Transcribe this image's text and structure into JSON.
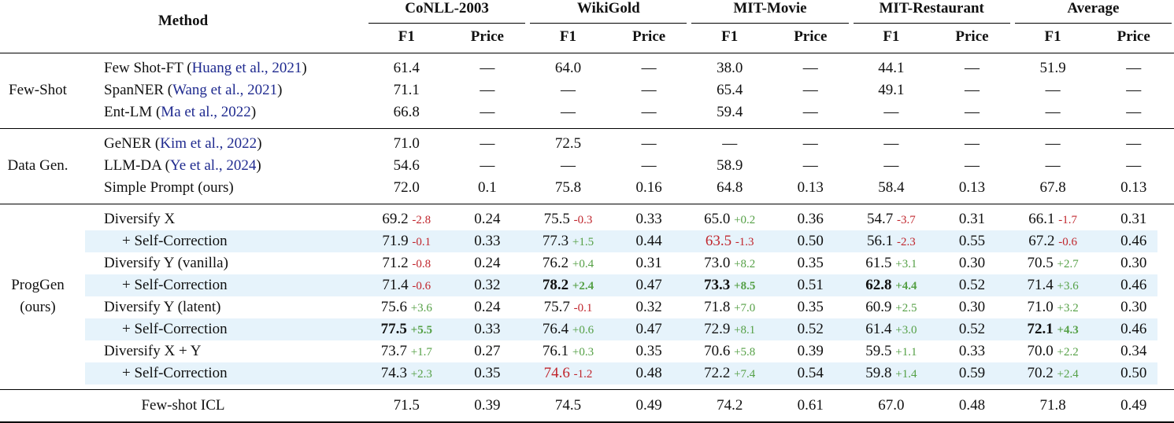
{
  "header": {
    "method": "Method",
    "datasets": [
      "CoNLL-2003",
      "WikiGold",
      "MIT-Movie",
      "MIT-Restaurant",
      "Average"
    ],
    "metrics": [
      "F1",
      "Price"
    ]
  },
  "colors": {
    "positive": "#55a046",
    "negative": "#c0262d",
    "cite": "#1f2a8f",
    "shade": "#e6f3fb"
  },
  "groups": [
    {
      "label": "Few-Shot",
      "rows": [
        {
          "method": {
            "name": "Few Shot-FT (",
            "cite": "Huang et al., 2021",
            "close": ")"
          },
          "cells": [
            {
              "f1": "61.4",
              "p": "—"
            },
            {
              "f1": "64.0",
              "p": "—"
            },
            {
              "f1": "38.0",
              "p": "—"
            },
            {
              "f1": "44.1",
              "p": "—"
            },
            {
              "f1": "51.9",
              "p": "—"
            }
          ]
        },
        {
          "method": {
            "name": "SpanNER (",
            "cite": "Wang et al., 2021",
            "close": ")"
          },
          "cells": [
            {
              "f1": "71.1",
              "p": "—"
            },
            {
              "f1": "—",
              "p": "—"
            },
            {
              "f1": "65.4",
              "p": "—"
            },
            {
              "f1": "49.1",
              "p": "—"
            },
            {
              "f1": "—",
              "p": "—"
            }
          ]
        },
        {
          "method": {
            "name": "Ent-LM (",
            "cite": "Ma et al., 2022",
            "close": ")"
          },
          "cells": [
            {
              "f1": "66.8",
              "p": "—"
            },
            {
              "f1": "—",
              "p": "—"
            },
            {
              "f1": "59.4",
              "p": "—"
            },
            {
              "f1": "—",
              "p": "—"
            },
            {
              "f1": "—",
              "p": "—"
            }
          ]
        }
      ]
    },
    {
      "label": "Data Gen.",
      "rows": [
        {
          "method": {
            "name": "GeNER (",
            "cite": "Kim et al., 2022",
            "close": ")"
          },
          "cells": [
            {
              "f1": "71.0",
              "p": "—"
            },
            {
              "f1": "72.5",
              "p": "—"
            },
            {
              "f1": "—",
              "p": "—"
            },
            {
              "f1": "—",
              "p": "—"
            },
            {
              "f1": "—",
              "p": "—"
            }
          ]
        },
        {
          "method": {
            "name": "LLM-DA (",
            "cite": "Ye et al., 2024",
            "close": ")"
          },
          "cells": [
            {
              "f1": "54.6",
              "p": "—"
            },
            {
              "f1": "—",
              "p": "—"
            },
            {
              "f1": "58.9",
              "p": "—"
            },
            {
              "f1": "—",
              "p": "—"
            },
            {
              "f1": "—",
              "p": "—"
            }
          ]
        },
        {
          "method": {
            "name": "Simple Prompt (ours)"
          },
          "cells": [
            {
              "f1": "72.0",
              "p": "0.1"
            },
            {
              "f1": "75.8",
              "p": "0.16"
            },
            {
              "f1": "64.8",
              "p": "0.13"
            },
            {
              "f1": "58.4",
              "p": "0.13"
            },
            {
              "f1": "67.8",
              "p": "0.13"
            }
          ]
        }
      ]
    },
    {
      "label": "ProgGen (ours)",
      "rows": [
        {
          "method": {
            "name": "Diversify X"
          },
          "cells": [
            {
              "f1": "69.2",
              "d": "-2.8",
              "p": "0.24"
            },
            {
              "f1": "75.5",
              "d": "-0.3",
              "p": "0.33"
            },
            {
              "f1": "65.0",
              "d": "+0.2",
              "p": "0.36"
            },
            {
              "f1": "54.7",
              "d": "-3.7",
              "p": "0.31"
            },
            {
              "f1": "66.1",
              "d": "-1.7",
              "p": "0.31"
            }
          ]
        },
        {
          "shaded": true,
          "method": {
            "name": "+ Self-Correction"
          },
          "cells": [
            {
              "f1": "71.9",
              "d": "-0.1",
              "p": "0.33"
            },
            {
              "f1": "77.3",
              "d": "+1.5",
              "p": "0.44"
            },
            {
              "f1": "63.5",
              "d": "-1.3",
              "p": "0.50",
              "red": true
            },
            {
              "f1": "56.1",
              "d": "-2.3",
              "p": "0.55"
            },
            {
              "f1": "67.2",
              "d": "-0.6",
              "p": "0.46"
            }
          ]
        },
        {
          "method": {
            "name": "Diversify Y (vanilla)"
          },
          "cells": [
            {
              "f1": "71.2",
              "d": "-0.8",
              "p": "0.24"
            },
            {
              "f1": "76.2",
              "d": "+0.4",
              "p": "0.31"
            },
            {
              "f1": "73.0",
              "d": "+8.2",
              "p": "0.35"
            },
            {
              "f1": "61.5",
              "d": "+3.1",
              "p": "0.30"
            },
            {
              "f1": "70.5",
              "d": "+2.7",
              "p": "0.30"
            }
          ]
        },
        {
          "shaded": true,
          "method": {
            "name": "+ Self-Correction"
          },
          "cells": [
            {
              "f1": "71.4",
              "d": "-0.6",
              "p": "0.32"
            },
            {
              "f1": "78.2",
              "d": "+2.4",
              "p": "0.47",
              "bold": true
            },
            {
              "f1": "73.3",
              "d": "+8.5",
              "p": "0.51",
              "bold": true
            },
            {
              "f1": "62.8",
              "d": "+4.4",
              "p": "0.52",
              "bold": true
            },
            {
              "f1": "71.4",
              "d": "+3.6",
              "p": "0.46"
            }
          ]
        },
        {
          "method": {
            "name": "Diversify Y (latent)"
          },
          "cells": [
            {
              "f1": "75.6",
              "d": "+3.6",
              "p": "0.24"
            },
            {
              "f1": "75.7",
              "d": "-0.1",
              "p": "0.32"
            },
            {
              "f1": "71.8",
              "d": "+7.0",
              "p": "0.35"
            },
            {
              "f1": "60.9",
              "d": "+2.5",
              "p": "0.30"
            },
            {
              "f1": "71.0",
              "d": "+3.2",
              "p": "0.30"
            }
          ]
        },
        {
          "shaded": true,
          "method": {
            "name": "+ Self-Correction"
          },
          "cells": [
            {
              "f1": "77.5",
              "d": "+5.5",
              "p": "0.33",
              "bold": true
            },
            {
              "f1": "76.4",
              "d": "+0.6",
              "p": "0.47"
            },
            {
              "f1": "72.9",
              "d": "+8.1",
              "p": "0.52"
            },
            {
              "f1": "61.4",
              "d": "+3.0",
              "p": "0.52"
            },
            {
              "f1": "72.1",
              "d": "+4.3",
              "p": "0.46",
              "bold": true
            }
          ]
        },
        {
          "method": {
            "name": "Diversify X + Y"
          },
          "cells": [
            {
              "f1": "73.7",
              "d": "+1.7",
              "p": "0.27"
            },
            {
              "f1": "76.1",
              "d": "+0.3",
              "p": "0.35"
            },
            {
              "f1": "70.6",
              "d": "+5.8",
              "p": "0.39"
            },
            {
              "f1": "59.5",
              "d": "+1.1",
              "p": "0.33"
            },
            {
              "f1": "70.0",
              "d": "+2.2",
              "p": "0.34"
            }
          ]
        },
        {
          "shaded": true,
          "method": {
            "name": "+ Self-Correction"
          },
          "cells": [
            {
              "f1": "74.3",
              "d": "+2.3",
              "p": "0.35"
            },
            {
              "f1": "74.6",
              "d": "-1.2",
              "p": "0.48",
              "red": true
            },
            {
              "f1": "72.2",
              "d": "+7.4",
              "p": "0.54"
            },
            {
              "f1": "59.8",
              "d": "+1.4",
              "p": "0.59"
            },
            {
              "f1": "70.2",
              "d": "+2.4",
              "p": "0.50"
            }
          ]
        }
      ]
    }
  ],
  "final": {
    "method": "Few-shot ICL",
    "cells": [
      {
        "f1": "71.5",
        "p": "0.39"
      },
      {
        "f1": "74.5",
        "p": "0.49"
      },
      {
        "f1": "74.2",
        "p": "0.61"
      },
      {
        "f1": "67.0",
        "p": "0.48"
      },
      {
        "f1": "71.8",
        "p": "0.49"
      }
    ]
  }
}
